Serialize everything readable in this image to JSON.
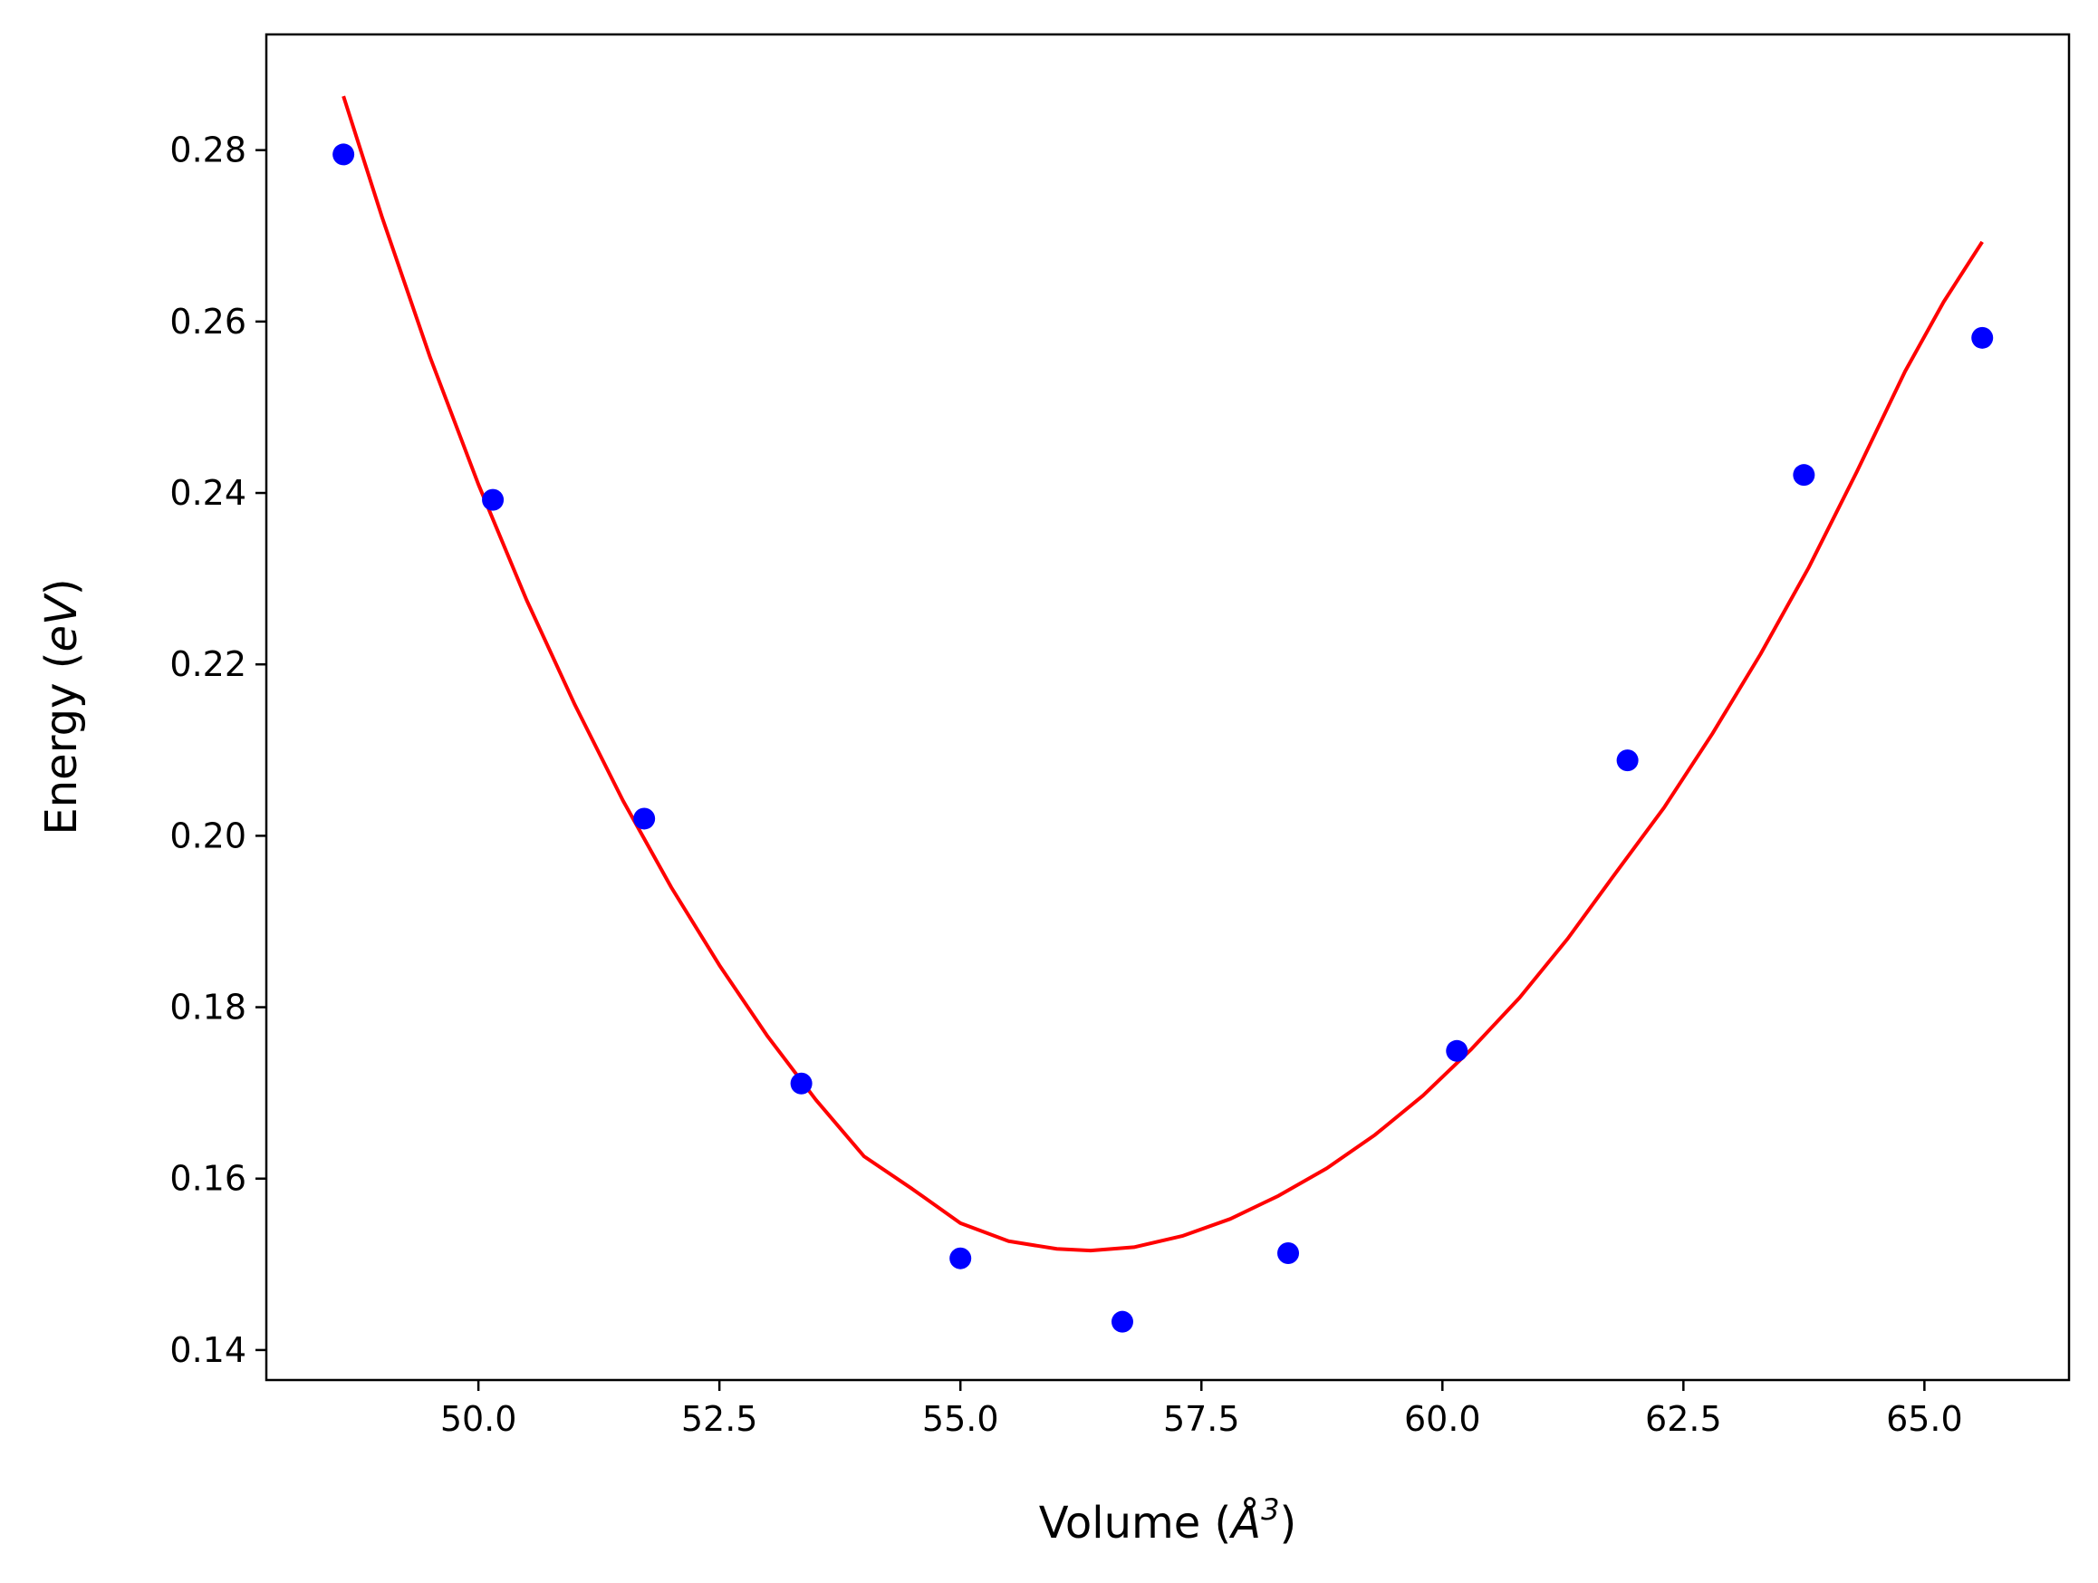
{
  "chart_data": {
    "type": "scatter",
    "title": "",
    "xlabel": {
      "prefix": "Volume (",
      "symbol": "Å",
      "sup": "3",
      "suffix": ")"
    },
    "ylabel": {
      "prefix": "Energy (",
      "symbol": "eV",
      "suffix": ")"
    },
    "xlim": [
      47.8,
      66.5
    ],
    "ylim": [
      0.1365,
      0.2935
    ],
    "x_ticks": [
      50.0,
      52.5,
      55.0,
      57.5,
      60.0,
      62.5,
      65.0
    ],
    "x_tick_labels": [
      "50.0",
      "52.5",
      "55.0",
      "57.5",
      "60.0",
      "62.5",
      "65.0"
    ],
    "y_ticks": [
      0.14,
      0.16,
      0.18,
      0.2,
      0.22,
      0.24,
      0.26,
      0.28
    ],
    "y_tick_labels": [
      "0.14",
      "0.16",
      "0.18",
      "0.20",
      "0.22",
      "0.24",
      "0.26",
      "0.28"
    ],
    "grid": false,
    "series": [
      {
        "kind": "scatter",
        "color": "#0000ff",
        "x": [
          48.6,
          50.15,
          51.72,
          53.35,
          55.0,
          56.68,
          58.4,
          60.15,
          61.92,
          63.75,
          65.6
        ],
        "y": [
          0.2795,
          0.2392,
          0.202,
          0.1711,
          0.1507,
          0.1433,
          0.1513,
          0.1749,
          0.2088,
          0.2421,
          0.2581
        ]
      },
      {
        "kind": "line",
        "color": "#ff0000",
        "x": [
          48.6,
          49.0,
          49.5,
          50.0,
          50.5,
          51.0,
          51.5,
          52.0,
          52.5,
          53.0,
          53.5,
          54.0,
          54.5,
          55.0,
          55.5,
          56.0,
          56.35,
          56.8,
          57.3,
          57.8,
          58.3,
          58.8,
          59.3,
          59.8,
          60.3,
          60.8,
          61.3,
          61.8,
          62.3,
          62.8,
          63.3,
          63.8,
          64.3,
          64.8,
          65.2,
          65.6
        ],
        "y": [
          0.2863,
          0.2722,
          0.2558,
          0.241,
          0.2275,
          0.2153,
          0.2041,
          0.194,
          0.1849,
          0.1766,
          0.1692,
          0.1626,
          0.1588,
          0.1548,
          0.1527,
          0.1518,
          0.1516,
          0.152,
          0.1533,
          0.1553,
          0.158,
          0.1612,
          0.1651,
          0.1697,
          0.1751,
          0.1811,
          0.188,
          0.1957,
          0.2033,
          0.2119,
          0.2212,
          0.2313,
          0.2425,
          0.2542,
          0.2623,
          0.2693
        ]
      }
    ]
  }
}
